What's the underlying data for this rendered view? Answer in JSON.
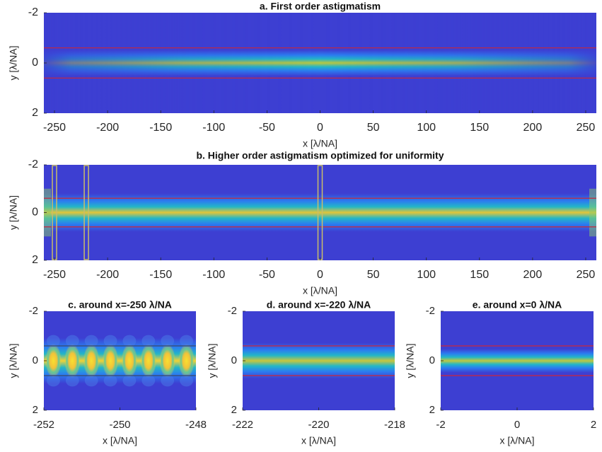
{
  "chart_data": [
    {
      "type": "heatmap",
      "title": "a. First order astigmatism",
      "xlabel": "x [λ/NA]",
      "ylabel": "y [λ/NA]",
      "xlim": [
        -260,
        260
      ],
      "ylim": [
        -2,
        2
      ],
      "y_direction": "reverse",
      "xticks": [
        -250,
        -200,
        -150,
        -100,
        -50,
        0,
        50,
        100,
        150,
        200,
        250
      ],
      "yticks": [
        -2,
        0,
        2
      ],
      "hlines": [
        -0.6,
        0.6
      ],
      "hline_color": "#c8283c"
    },
    {
      "type": "heatmap",
      "title": "b. Higher order astigmatism optimized for uniformity",
      "xlabel": "x [λ/NA]",
      "ylabel": "y [λ/NA]",
      "xlim": [
        -260,
        260
      ],
      "ylim": [
        -2,
        2
      ],
      "y_direction": "reverse",
      "xticks": [
        -250,
        -200,
        -150,
        -100,
        -50,
        0,
        50,
        100,
        150,
        200,
        250
      ],
      "yticks": [
        -2,
        0,
        2
      ],
      "hlines": [
        -0.6,
        0.6
      ],
      "hline_color": "#c8283c",
      "highlight_xranges": [
        [
          -252,
          -248
        ],
        [
          -222,
          -218
        ],
        [
          -2,
          2
        ]
      ],
      "highlight_color": "#c9bd6a"
    },
    {
      "type": "heatmap",
      "title": "c. around x=-250 λ/NA",
      "xlabel": "x [λ/NA]",
      "ylabel": "y [λ/NA]",
      "xlim": [
        -252,
        -248
      ],
      "ylim": [
        -2,
        2
      ],
      "y_direction": "reverse",
      "xticks": [
        -252,
        -250,
        -248
      ],
      "yticks": [
        -2,
        0,
        2
      ],
      "hlines": [
        -0.6,
        0.6
      ],
      "hline_color": "#3a4a6a"
    },
    {
      "type": "heatmap",
      "title": "d. around x=-220 λ/NA",
      "xlabel": "x [λ/NA]",
      "ylabel": "y [λ/NA]",
      "xlim": [
        -222,
        -218
      ],
      "ylim": [
        -2,
        2
      ],
      "y_direction": "reverse",
      "xticks": [
        -222,
        -220,
        -218
      ],
      "yticks": [
        -2,
        0,
        2
      ],
      "hlines": [
        -0.6,
        0.6
      ],
      "hline_color": "#c8283c"
    },
    {
      "type": "heatmap",
      "title": "e. around x=0 λ/NA",
      "xlabel": "x [λ/NA]",
      "ylabel": "y [λ/NA]",
      "xlim": [
        -2,
        2
      ],
      "ylim": [
        -2,
        2
      ],
      "y_direction": "reverse",
      "xticks": [
        -2,
        0,
        2
      ],
      "yticks": [
        -2,
        0,
        2
      ],
      "hlines": [
        -0.6,
        0.6
      ],
      "hline_color": "#c8283c"
    }
  ]
}
